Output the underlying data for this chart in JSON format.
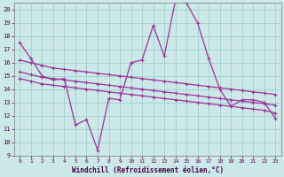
{
  "xlabel": "Windchill (Refroidissement éolien,°C)",
  "bg_color": "#cce8e8",
  "grid_color": "#99cccc",
  "line_color": "#993399",
  "xmin": -0.5,
  "xmax": 23.5,
  "ymin": 9,
  "ymax": 20.5,
  "yticks": [
    9,
    10,
    11,
    12,
    13,
    14,
    15,
    16,
    17,
    18,
    19,
    20
  ],
  "xticks": [
    0,
    1,
    2,
    3,
    4,
    5,
    6,
    7,
    8,
    9,
    10,
    11,
    12,
    13,
    14,
    15,
    16,
    17,
    18,
    19,
    20,
    21,
    22,
    23
  ],
  "line_main_x": [
    0,
    1,
    2,
    3,
    4,
    5,
    6,
    7,
    8,
    9,
    10,
    11,
    12,
    13,
    14,
    15,
    16,
    17,
    18,
    19,
    20,
    21,
    22,
    23
  ],
  "line_main_y": [
    17.5,
    16.3,
    15.0,
    14.7,
    14.8,
    11.3,
    11.7,
    9.4,
    13.3,
    13.2,
    16.0,
    16.2,
    18.8,
    16.5,
    20.7,
    20.5,
    19.0,
    16.3,
    14.0,
    12.7,
    13.2,
    13.2,
    13.0,
    11.8
  ],
  "line_a_x": [
    0,
    1,
    2,
    3,
    4,
    5,
    6,
    7,
    8,
    9,
    10,
    11,
    12,
    13,
    14,
    15,
    16,
    17,
    18,
    19,
    20,
    21,
    22,
    23
  ],
  "line_a_y": [
    16.2,
    16.0,
    15.8,
    15.6,
    15.5,
    15.4,
    15.3,
    15.2,
    15.1,
    15.0,
    14.9,
    14.8,
    14.7,
    14.6,
    14.5,
    14.4,
    14.3,
    14.2,
    14.1,
    14.0,
    13.9,
    13.8,
    13.7,
    13.6
  ],
  "line_b_x": [
    0,
    1,
    2,
    3,
    4,
    5,
    6,
    7,
    8,
    9,
    10,
    11,
    12,
    13,
    14,
    15,
    16,
    17,
    18,
    19,
    20,
    21,
    22,
    23
  ],
  "line_b_y": [
    15.3,
    15.1,
    14.9,
    14.8,
    14.7,
    14.6,
    14.5,
    14.4,
    14.3,
    14.2,
    14.1,
    14.0,
    13.9,
    13.8,
    13.7,
    13.6,
    13.5,
    13.4,
    13.3,
    13.2,
    13.1,
    13.0,
    12.9,
    12.8
  ],
  "line_c_x": [
    0,
    1,
    2,
    3,
    4,
    5,
    6,
    7,
    8,
    9,
    10,
    11,
    12,
    13,
    14,
    15,
    16,
    17,
    18,
    19,
    20,
    21,
    22,
    23
  ],
  "line_c_y": [
    14.8,
    14.6,
    14.4,
    14.3,
    14.2,
    14.1,
    14.0,
    13.9,
    13.8,
    13.7,
    13.6,
    13.5,
    13.4,
    13.3,
    13.2,
    13.1,
    13.0,
    12.9,
    12.8,
    12.7,
    12.6,
    12.5,
    12.4,
    12.2
  ]
}
